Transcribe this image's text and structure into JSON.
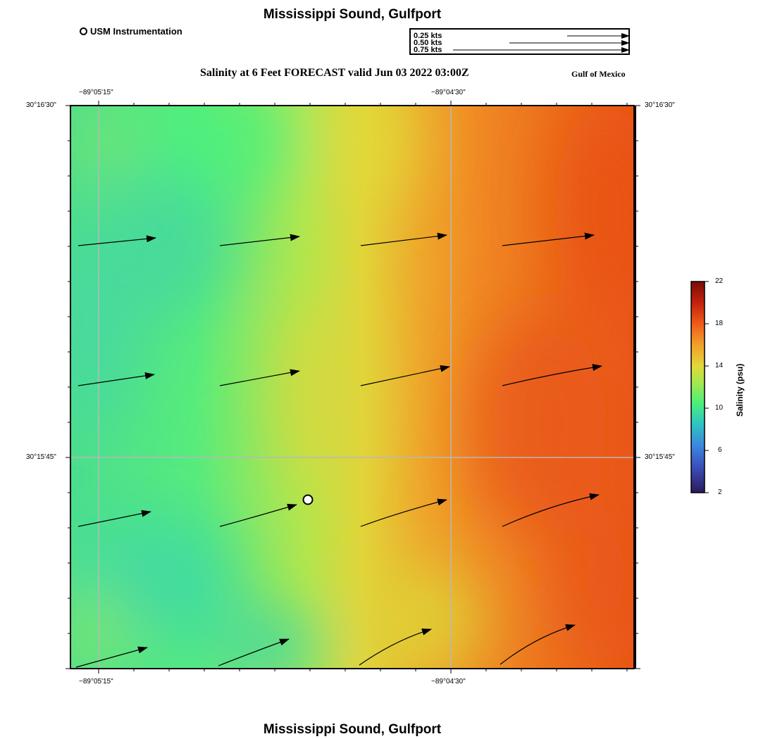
{
  "header": {
    "title": "Mississippi Sound, Gulfport",
    "subtitle": "Salinity at 6 Feet FORECAST valid Jun 03 2022 03:00Z",
    "region": "Gulf of Mexico",
    "station_legend": "USM Instrumentation"
  },
  "footer": {
    "title": "Mississippi Sound, Gulfport"
  },
  "vector_legend": {
    "labels": [
      "0.25 kts",
      "0.50 kts",
      "0.75 kts"
    ]
  },
  "axes": {
    "lon_ticks": [
      "−89°05'15\"",
      "−89°04'30\""
    ],
    "lat_ticks": [
      "30°16'30\"",
      "30°15'45\""
    ]
  },
  "colorbar": {
    "title": "Salinity (psu)",
    "ticks": [
      "22",
      "18",
      "14",
      "10",
      "6",
      "2"
    ],
    "range": [
      2,
      22
    ],
    "colors": [
      "#2b1a5e",
      "#3a6fd6",
      "#2fbfd0",
      "#49f07a",
      "#b6e84a",
      "#e3d83a",
      "#f2a02a",
      "#ef5b18",
      "#c4210e",
      "#7a0c08"
    ]
  },
  "field": {
    "low_color": "#45dc9c",
    "mid_color": "#9ae65a",
    "high_color": "#ee5a18"
  },
  "current_vectors_note": ""
}
